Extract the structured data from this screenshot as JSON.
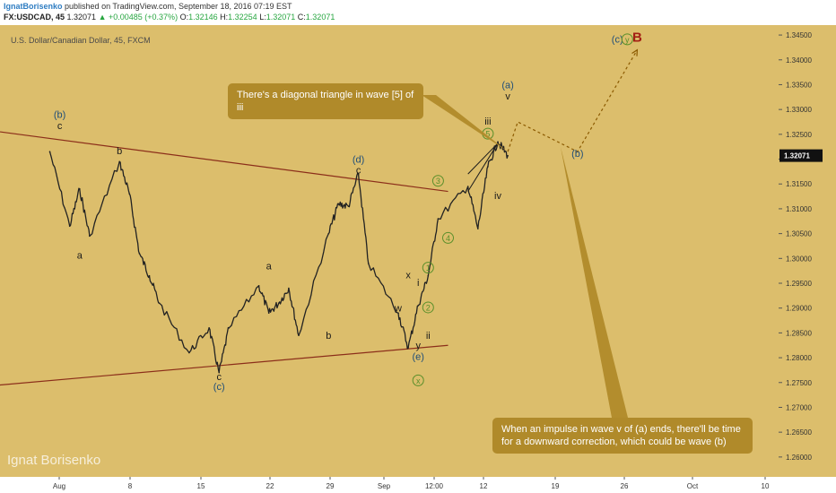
{
  "header": {
    "username": "IgnatBorisenko",
    "published": "published on TradingView.com, September 18, 2016 07:19 EST",
    "symbol": "FX:USDCAD, 45",
    "last": "1.32071",
    "change": "▲ +0.00485 (+0.37%)",
    "open_label": "O:",
    "open": "1.32146",
    "high_label": "H:",
    "high": "1.32254",
    "low_label": "L:",
    "low": "1.32071",
    "close_label": "C:",
    "close": "1.32071"
  },
  "colors": {
    "plot_bg": "#dcbe6c",
    "axis_bg": "#dcbe6c",
    "candle": "#222222",
    "trendline": "#8b2e1a",
    "wave_blue": "#1f4e79",
    "wave_green": "#5a8f2a",
    "wave_red": "#a31f14",
    "bubble": "#b08a2a",
    "projection": "#8b5a00"
  },
  "chart_data": {
    "type": "line",
    "title": "U.S. Dollar/Canadian Dollar, 45, FXCM",
    "price_label": "1.32071",
    "ylim": [
      1.256,
      1.347
    ],
    "y_ticks": [
      "1.34500",
      "1.34000",
      "1.33500",
      "1.33000",
      "1.32500",
      "1.32000",
      "1.31500",
      "1.31000",
      "1.30500",
      "1.30000",
      "1.29500",
      "1.29000",
      "1.28500",
      "1.28000",
      "1.27500",
      "1.27000",
      "1.26500",
      "1.26000"
    ],
    "x_ticks": [
      "Aug",
      "8",
      "15",
      "22",
      "29",
      "Sep",
      "12:00",
      "12",
      "19",
      "26",
      "Oct",
      "10"
    ],
    "series": [
      {
        "x": [
          "Aug 1",
          "Aug 3",
          "Aug 4",
          "Aug 5",
          "Aug 8",
          "Aug 9",
          "Aug 10",
          "Aug 11",
          "Aug 12",
          "Aug 15",
          "Aug 17",
          "Aug 18",
          "Aug 19",
          "Aug 22",
          "Aug 23",
          "Aug 24",
          "Aug 25",
          "Aug 26",
          "Aug 29",
          "Aug 30",
          "Aug 31",
          "Sep 1",
          "Sep 2",
          "Sep 5",
          "Sep 6",
          "Sep 7",
          "Sep 8",
          "Sep 9",
          "Sep 12",
          "Sep 13",
          "Sep 14",
          "Sep 15",
          "Sep 16"
        ],
        "values": [
          1.3215,
          1.3065,
          1.314,
          1.3045,
          1.3195,
          1.313,
          1.301,
          1.2965,
          1.291,
          1.281,
          1.286,
          1.277,
          1.286,
          1.2945,
          1.289,
          1.291,
          1.294,
          1.2845,
          1.305,
          1.311,
          1.3105,
          1.317,
          1.299,
          1.289,
          1.282,
          1.2905,
          1.2965,
          1.308,
          1.3145,
          1.306,
          1.3185,
          1.3235,
          1.3207
        ]
      }
    ],
    "trendlines": [
      {
        "from": [
          "Jul 27",
          1.3255
        ],
        "to": [
          "Sep 10",
          1.3135
        ]
      },
      {
        "from": [
          "Jul 27",
          1.2745
        ],
        "to": [
          "Sep 10",
          1.2825
        ]
      },
      {
        "from": [
          "Sep 12",
          1.317
        ],
        "to": [
          "Sep 15",
          1.3232
        ]
      },
      {
        "from": [
          "Sep 12",
          1.3135
        ],
        "to": [
          "Sep 15",
          1.3232
        ]
      }
    ],
    "projection": [
      [
        "Sep 16",
        1.3215
      ],
      [
        "Sep 17",
        1.3275
      ],
      [
        "Sep 23",
        1.3215
      ],
      [
        "Sep 29",
        1.342
      ]
    ],
    "wave_labels": [
      {
        "text": "(b)",
        "x": "Aug 2",
        "y": 1.3283,
        "style": "blue"
      },
      {
        "text": "c",
        "x": "Aug 2",
        "y": 1.3261,
        "style": "black"
      },
      {
        "text": "b",
        "x": "Aug 8",
        "y": 1.321,
        "style": "black"
      },
      {
        "text": "a",
        "x": "Aug 4",
        "y": 1.3,
        "style": "black"
      },
      {
        "text": "a",
        "x": "Aug 23",
        "y": 1.2978,
        "style": "black"
      },
      {
        "text": "b",
        "x": "Aug 29",
        "y": 1.2838,
        "style": "black"
      },
      {
        "text": "c",
        "x": "Aug 18",
        "y": 1.2755,
        "style": "black"
      },
      {
        "text": "(c)",
        "x": "Aug 18",
        "y": 1.2735,
        "style": "blue"
      },
      {
        "text": "(d)",
        "x": "Sep 1",
        "y": 1.3193,
        "style": "blue"
      },
      {
        "text": "c",
        "x": "Sep 1",
        "y": 1.3171,
        "style": "black"
      },
      {
        "text": "x",
        "x": "Sep 6",
        "y": 1.296,
        "style": "black"
      },
      {
        "text": "w",
        "x": "Sep 5",
        "y": 1.2893,
        "style": "black"
      },
      {
        "text": "i",
        "x": "Sep 7",
        "y": 1.2945,
        "style": "black"
      },
      {
        "text": "ii",
        "x": "Sep 8",
        "y": 1.2838,
        "style": "black"
      },
      {
        "text": "y",
        "x": "Sep 7",
        "y": 1.2818,
        "style": "black"
      },
      {
        "text": "(e)",
        "x": "Sep 7",
        "y": 1.2796,
        "style": "blue"
      },
      {
        "text": "x",
        "x": "Sep 7",
        "y": 1.2748,
        "style": "green"
      },
      {
        "text": "1",
        "x": "Sep 8",
        "y": 1.2975,
        "style": "green"
      },
      {
        "text": "2",
        "x": "Sep 8",
        "y": 1.2895,
        "style": "green"
      },
      {
        "text": "3",
        "x": "Sep 9",
        "y": 1.315,
        "style": "green"
      },
      {
        "text": "4",
        "x": "Sep 10",
        "y": 1.3035,
        "style": "green"
      },
      {
        "text": "5",
        "x": "Sep 14",
        "y": 1.3245,
        "style": "green"
      },
      {
        "text": "iii",
        "x": "Sep 14",
        "y": 1.327,
        "style": "black"
      },
      {
        "text": "iv",
        "x": "Sep 15",
        "y": 1.312,
        "style": "black"
      },
      {
        "text": "(a)",
        "x": "Sep 16",
        "y": 1.3343,
        "style": "blue"
      },
      {
        "text": "v",
        "x": "Sep 16",
        "y": 1.332,
        "style": "black"
      },
      {
        "text": "(b)",
        "x": "Sep 23",
        "y": 1.3205,
        "style": "blue"
      },
      {
        "text": "(c)",
        "x": "Sep 27",
        "y": 1.3435,
        "style": "blue"
      },
      {
        "text": "y",
        "x": "Sep 28",
        "y": 1.3435,
        "style": "green"
      },
      {
        "text": "B",
        "x": "Sep 29",
        "y": 1.3437,
        "style": "red"
      }
    ]
  },
  "annotations": {
    "bubble1": "There's a diagonal triangle in wave [5] of iii",
    "bubble2": "When an impulse in wave v of (a) ends, there'll be time for a downward correction, which could be wave (b)"
  },
  "watermark": "Ignat Borisenko"
}
